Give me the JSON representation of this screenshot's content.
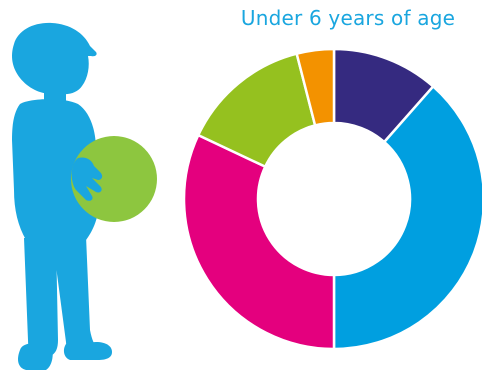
{
  "colors": {
    "accent": "#1aa6df",
    "child_silhouette": "#1aa6df",
    "ball": "#8dc63f"
  },
  "chart_data": {
    "type": "pie",
    "title": "Under 6 years of age",
    "donut": true,
    "start_angle_deg": 0,
    "direction": "clockwise",
    "slices": [
      {
        "value": 11.5,
        "color": "#352a80"
      },
      {
        "value": 38.5,
        "color": "#009fe0"
      },
      {
        "value": 32.0,
        "color": "#e4007e"
      },
      {
        "value": 14.0,
        "color": "#95c11f"
      },
      {
        "value": 4.0,
        "color": "#f39200"
      }
    ]
  }
}
